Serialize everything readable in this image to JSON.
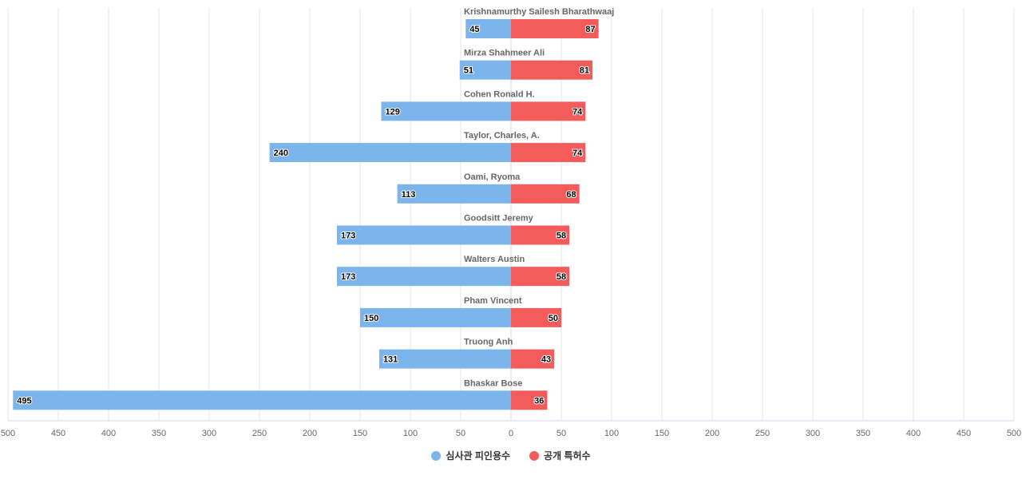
{
  "chart_data": {
    "type": "bar",
    "orientation": "horizontal-diverging",
    "categories": [
      "Krishnamurthy Sailesh Bharathwaaj",
      "Mirza Shahmeer Ali",
      "Cohen Ronald H.",
      "Taylor, Charles, A.",
      "Oami, Ryoma",
      "Goodsitt Jeremy",
      "Walters Austin",
      "Pham Vincent",
      "Truong Anh",
      "Bhaskar Bose"
    ],
    "series": [
      {
        "name": "심사관 피인용수",
        "color": "#7cb5ec",
        "direction": "left",
        "values": [
          45,
          51,
          129,
          240,
          113,
          173,
          173,
          150,
          131,
          495
        ]
      },
      {
        "name": "공개 특허수",
        "color": "#f45b5b",
        "direction": "right",
        "values": [
          87,
          81,
          74,
          74,
          68,
          58,
          58,
          50,
          43,
          36
        ]
      }
    ],
    "xlim": [
      -500,
      500
    ],
    "xticks": [
      "500",
      "450",
      "400",
      "350",
      "300",
      "250",
      "200",
      "150",
      "100",
      "50",
      "0",
      "50",
      "100",
      "150",
      "200",
      "250",
      "300",
      "350",
      "400",
      "450",
      "500"
    ],
    "grid": true,
    "legend_position": "bottom-center"
  }
}
